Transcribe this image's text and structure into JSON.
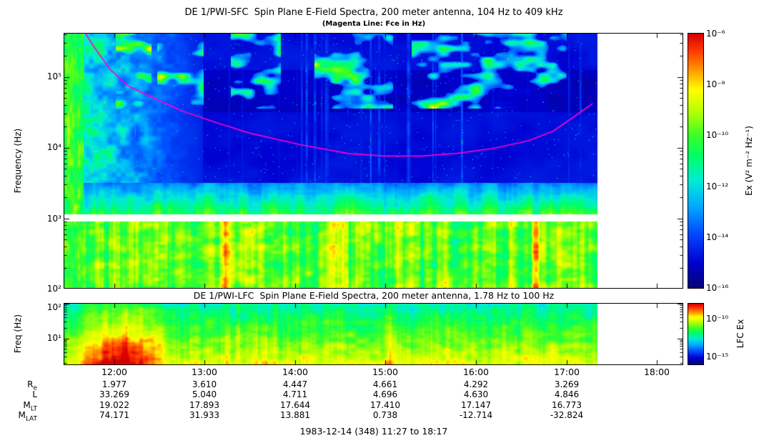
{
  "chart_data": [
    {
      "type": "heatmap",
      "name": "DE1 PWI SFC spectrogram",
      "title": "DE 1/PWI-SFC  Spin Plane E-Field Spectra, 200 meter antenna, 104 Hz to 409 kHz",
      "subtitle": "(Magenta Line: Fce in Hz)",
      "ylabel": "Frequency (Hz)",
      "y_scale": "log",
      "freq_range_hz": [
        104,
        409000
      ],
      "y_ticks": [
        "10⁵",
        "10⁴",
        "10³",
        "10²"
      ],
      "time_range_hours": [
        11.45,
        18.2833
      ],
      "data_end_hour": 17.3333,
      "white_band_hz": [
        900,
        1140
      ],
      "colorbar": {
        "label": "Ex (V² m⁻² Hz⁻¹)",
        "ticks": [
          "10⁻⁶",
          "10⁻⁸",
          "10⁻¹⁰",
          "10⁻¹²",
          "10⁻¹⁴",
          "10⁻¹⁶"
        ],
        "range_exp": [
          -6,
          -16
        ],
        "scale": "rainbow, red = high power, dark blue = low power"
      },
      "fce_line": {
        "color": "#ff00cc",
        "meaning": "electron cyclotron frequency Fce in Hz",
        "points_hour_hz": [
          [
            11.68,
            420000
          ],
          [
            11.77,
            276000
          ],
          [
            11.95,
            130000
          ],
          [
            12.15,
            75000
          ],
          [
            12.4,
            53000
          ],
          [
            12.75,
            33000
          ],
          [
            13.11,
            23000
          ],
          [
            13.5,
            16000
          ],
          [
            14.06,
            11000
          ],
          [
            14.6,
            8200
          ],
          [
            15.0,
            7600
          ],
          [
            15.4,
            7600
          ],
          [
            15.79,
            8300
          ],
          [
            16.2,
            9800
          ],
          [
            16.58,
            12500
          ],
          [
            16.85,
            17000
          ],
          [
            17.06,
            26000
          ],
          [
            17.29,
            42000
          ]
        ]
      },
      "features": [
        "intense broadband green/yellow/orange emission below ~3 kHz for entire pass",
        "strong activity at all frequencies before ~13:00 near perigee",
        "patchy green/cyan emission above ~50 kHz",
        "dark blue quiet region ~20-100 kHz through mid-pass",
        "white instrument gap band near 1 kHz",
        "data ends near 17:20, white afterwards"
      ]
    },
    {
      "type": "heatmap",
      "name": "DE1 PWI LFC spectrogram",
      "title": "DE 1/PWI-LFC  Spin Plane E-Field Spectra, 200 meter antenna, 1.78 Hz to 100 Hz",
      "ylabel": "Freq (Hz)",
      "y_scale": "log",
      "freq_range_hz": [
        1.78,
        100
      ],
      "y_ticks": [
        "10²",
        "10¹"
      ],
      "colorbar": {
        "label": "LFC Ex",
        "ticks": [
          "10⁻¹⁰",
          "10⁻¹⁵"
        ],
        "range_exp": [
          -8,
          -16
        ]
      },
      "features": [
        "yellow/green broadband emission throughout",
        "intense red low-frequency emission strongest ~11:40-12:30",
        "data ends near 17:20, white afterwards"
      ]
    }
  ],
  "time_axis": {
    "labels": [
      "12:00",
      "13:00",
      "14:00",
      "15:00",
      "16:00",
      "17:00",
      "18:00"
    ],
    "hours": [
      12,
      13,
      14,
      15,
      16,
      17,
      18
    ]
  },
  "ephemeris": {
    "rows": [
      {
        "label_main": "R",
        "label_sub": "e",
        "values": [
          "1.977",
          "3.610",
          "4.447",
          "4.661",
          "4.292",
          "3.269"
        ]
      },
      {
        "label_main": "L",
        "label_sub": "",
        "values": [
          "33.269",
          "5.040",
          "4.711",
          "4.696",
          "4.630",
          "4.846"
        ]
      },
      {
        "label_main": "M",
        "label_sub": "LT",
        "values": [
          "19.022",
          "17.893",
          "17.644",
          "17.410",
          "17.147",
          "16.773"
        ]
      },
      {
        "label_main": "M",
        "label_sub": "LAT",
        "values": [
          "74.171",
          "31.933",
          "13.881",
          "0.738",
          "-12.714",
          "-32.824"
        ]
      }
    ]
  },
  "footer": {
    "caption": "1983-12-14 (348) 11:27 to 18:17"
  }
}
